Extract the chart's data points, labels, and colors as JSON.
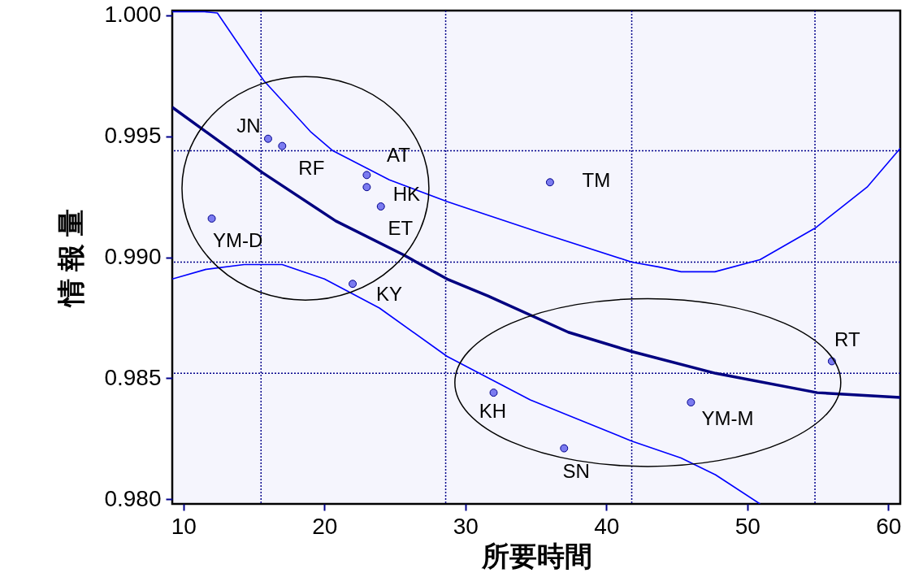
{
  "chart_data": {
    "type": "scatter",
    "xlabel": "所要時間",
    "ylabel": "情 報 量",
    "xlim": [
      9.2,
      60.85
    ],
    "ylim": [
      0.9798,
      1.0002
    ],
    "xticks": [
      10,
      20,
      30,
      40,
      50,
      60
    ],
    "yticks": [
      {
        "value": 0.98,
        "label": "0.980"
      },
      {
        "value": 0.985,
        "label": "0.985"
      },
      {
        "value": 0.99,
        "label": "0.990"
      },
      {
        "value": 0.995,
        "label": "0.995"
      },
      {
        "value": 1.0,
        "label": "1.000"
      }
    ],
    "grid": false,
    "series": [
      {
        "marker": "circle",
        "color": "#7b7bf0",
        "x": [
          16,
          17,
          23,
          23,
          24,
          12,
          22,
          36,
          32,
          37,
          46,
          56
        ],
        "values": [
          0.9949,
          0.9946,
          0.9934,
          0.9929,
          0.9921,
          0.9916,
          0.9889,
          0.9931,
          0.9844,
          0.9821,
          0.984,
          0.9857
        ]
      },
      {
        "type": "line",
        "color": "#000080",
        "x": [
          9.2,
          15.6,
          20.8,
          25.6,
          28.7,
          31.6,
          37.3,
          41.8,
          47.75,
          54.96,
          60.85
        ],
        "values": [
          0.9962,
          0.9935,
          0.9915,
          0.9901,
          0.9891,
          0.9884,
          0.9869,
          0.9861,
          0.9852,
          0.9844,
          0.9842
        ]
      },
      {
        "type": "line",
        "color": "#0000ff",
        "x": [
          9.2,
          11.5,
          12.4,
          14.85,
          15.7,
          19.0,
          20.6,
          24.6,
          28.7,
          35.4,
          41.8,
          43.7,
          45.3,
          47.7,
          50.9,
          54.8,
          58.5,
          60.85
        ],
        "values": [
          1.00015,
          1.00015,
          1.0001,
          0.998,
          0.9973,
          0.9952,
          0.9944,
          0.9932,
          0.9923,
          0.991,
          0.9898,
          0.9896,
          0.9894,
          0.9894,
          0.9899,
          0.9912,
          0.9929,
          0.9945
        ]
      },
      {
        "type": "line",
        "color": "#0000ff",
        "x": [
          9.2,
          11.6,
          14.3,
          17.0,
          20.0,
          23.9,
          28.7,
          34.6,
          41.8,
          45.3,
          47.75,
          50.9
        ],
        "values": [
          0.9891,
          0.9895,
          0.9897,
          0.9897,
          0.9891,
          0.9879,
          0.9859,
          0.9841,
          0.9824,
          0.9817,
          0.981,
          0.9798
        ]
      }
    ],
    "ref_lines": [
      {
        "axis": "x",
        "value": 15.5,
        "color": "#00008b",
        "line_style": "dotted"
      },
      {
        "axis": "x",
        "value": 28.6,
        "color": "#00008b",
        "line_style": "dotted"
      },
      {
        "axis": "x",
        "value": 41.8,
        "color": "#00008b",
        "line_style": "dotted"
      },
      {
        "axis": "x",
        "value": 54.8,
        "color": "#00008b",
        "line_style": "dotted"
      },
      {
        "axis": "y",
        "value": 0.9852,
        "color": "#00008b",
        "line_style": "dotted"
      },
      {
        "axis": "y",
        "value": 0.9898,
        "color": "#00008b",
        "line_style": "dotted"
      },
      {
        "axis": "y",
        "value": 0.9944,
        "color": "#00008b",
        "line_style": "dotted"
      }
    ],
    "annotations": [
      {
        "text": "JN",
        "x": 16,
        "y": 0.9949
      },
      {
        "text": "RF",
        "x": 17,
        "y": 0.9946
      },
      {
        "text": "AT",
        "x": 23,
        "y": 0.9934
      },
      {
        "text": "HK",
        "x": 23,
        "y": 0.9929
      },
      {
        "text": "ET",
        "x": 24,
        "y": 0.9921
      },
      {
        "text": "YM-D",
        "x": 12,
        "y": 0.9916
      },
      {
        "text": "KY",
        "x": 22,
        "y": 0.9889
      },
      {
        "text": "TM",
        "x": 36,
        "y": 0.9931
      },
      {
        "text": "KH",
        "x": 32,
        "y": 0.9844
      },
      {
        "text": "SN",
        "x": 37,
        "y": 0.9821
      },
      {
        "text": "YM-M",
        "x": 46,
        "y": 0.984
      },
      {
        "text": "RT",
        "x": 56,
        "y": 0.9857
      }
    ]
  }
}
